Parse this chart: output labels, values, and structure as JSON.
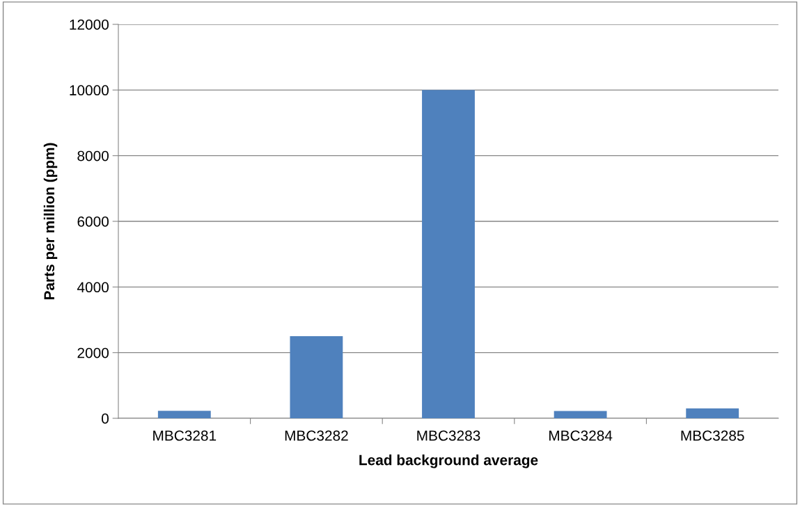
{
  "chart_data": {
    "type": "bar",
    "xlabel": "Lead background average",
    "ylabel": "Parts per million (ppm)",
    "categories": [
      "MBC3281",
      "MBC3282",
      "MBC3283",
      "MBC3284",
      "MBC3285"
    ],
    "values": [
      230,
      2500,
      10000,
      220,
      300
    ],
    "color": "#4f81bd",
    "ylim": [
      0,
      12000
    ],
    "yticks": [
      0,
      2000,
      4000,
      6000,
      8000,
      10000,
      12000
    ],
    "grid": "y",
    "legend": false
  }
}
